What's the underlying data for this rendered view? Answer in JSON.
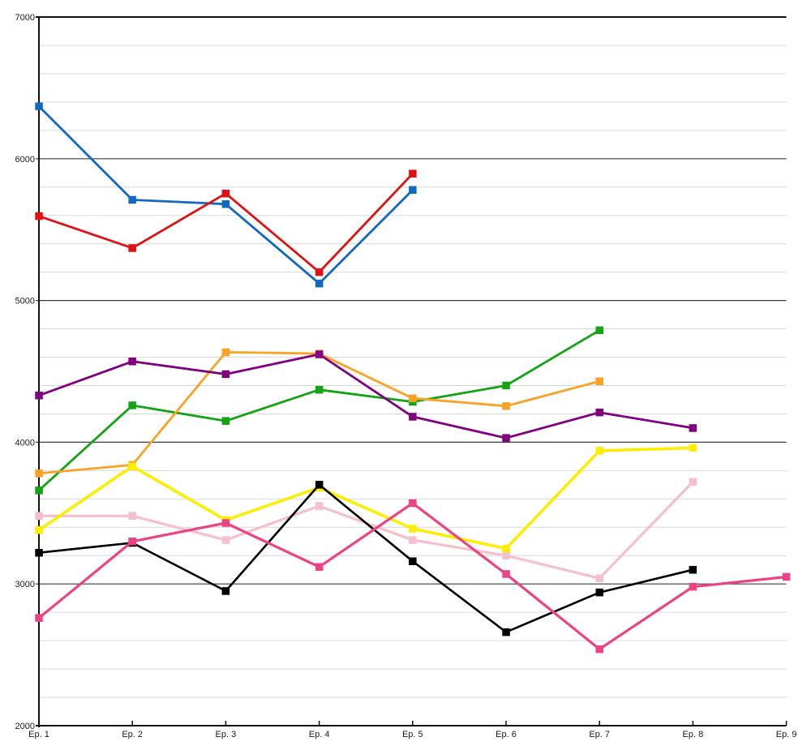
{
  "chart_data": {
    "type": "line",
    "title": "",
    "xlabel": "",
    "ylabel": "",
    "categories": [
      "Ep. 1",
      "Ep. 2",
      "Ep. 3",
      "Ep. 4",
      "Ep. 5",
      "Ep. 6",
      "Ep. 7",
      "Ep. 8",
      "Ep. 9"
    ],
    "ylim": [
      2000,
      7000
    ],
    "y_major_ticks": [
      7000,
      6000,
      5000,
      4000,
      3000,
      2000
    ],
    "y_minor_step": 200,
    "grid": "horizontal only: light minor lines every 200, dark major lines every 1000",
    "legend_position": "none",
    "marker": "square",
    "series": [
      {
        "name": "blue",
        "color": "#1269C4",
        "values": [
          6370,
          5710,
          5680,
          5120,
          5780,
          null,
          null,
          null,
          null
        ]
      },
      {
        "name": "red",
        "color": "#E01112",
        "values": [
          5595,
          5370,
          5755,
          5200,
          5895,
          null,
          null,
          null,
          null
        ]
      },
      {
        "name": "purple",
        "color": "#800080",
        "values": [
          4330,
          4570,
          4480,
          4620,
          4180,
          4030,
          4210,
          4100,
          null
        ]
      },
      {
        "name": "green",
        "color": "#12A412",
        "values": [
          3660,
          4260,
          4150,
          4370,
          4285,
          4400,
          4790,
          null,
          null
        ]
      },
      {
        "name": "orange",
        "color": "#FAA224",
        "values": [
          3780,
          3840,
          4635,
          4625,
          4310,
          4255,
          4430,
          null,
          null
        ]
      },
      {
        "name": "yellow",
        "color": "#FBEE00",
        "values": [
          3380,
          3830,
          3450,
          3680,
          3390,
          3250,
          3940,
          3960,
          null
        ]
      },
      {
        "name": "pink",
        "color": "#F5C0CB",
        "values": [
          3480,
          3480,
          3310,
          3550,
          3310,
          3200,
          3040,
          3720,
          null
        ]
      },
      {
        "name": "black",
        "color": "#000000",
        "values": [
          3220,
          3290,
          2950,
          3700,
          3160,
          2660,
          2940,
          3100,
          null
        ]
      },
      {
        "name": "magenta",
        "color": "#ED4284",
        "values": [
          2760,
          3300,
          3430,
          3120,
          3570,
          3070,
          2540,
          2980,
          3050
        ]
      }
    ],
    "draw_order": [
      "pink",
      "green",
      "orange",
      "yellow",
      "black",
      "purple",
      "blue",
      "red",
      "magenta"
    ]
  },
  "colors": {
    "background": "#FFFFFF",
    "grid_minor": "#D9D9D9",
    "grid_major": "#3C3C3C",
    "axis": "#111111",
    "label": "#1A1A1A"
  }
}
